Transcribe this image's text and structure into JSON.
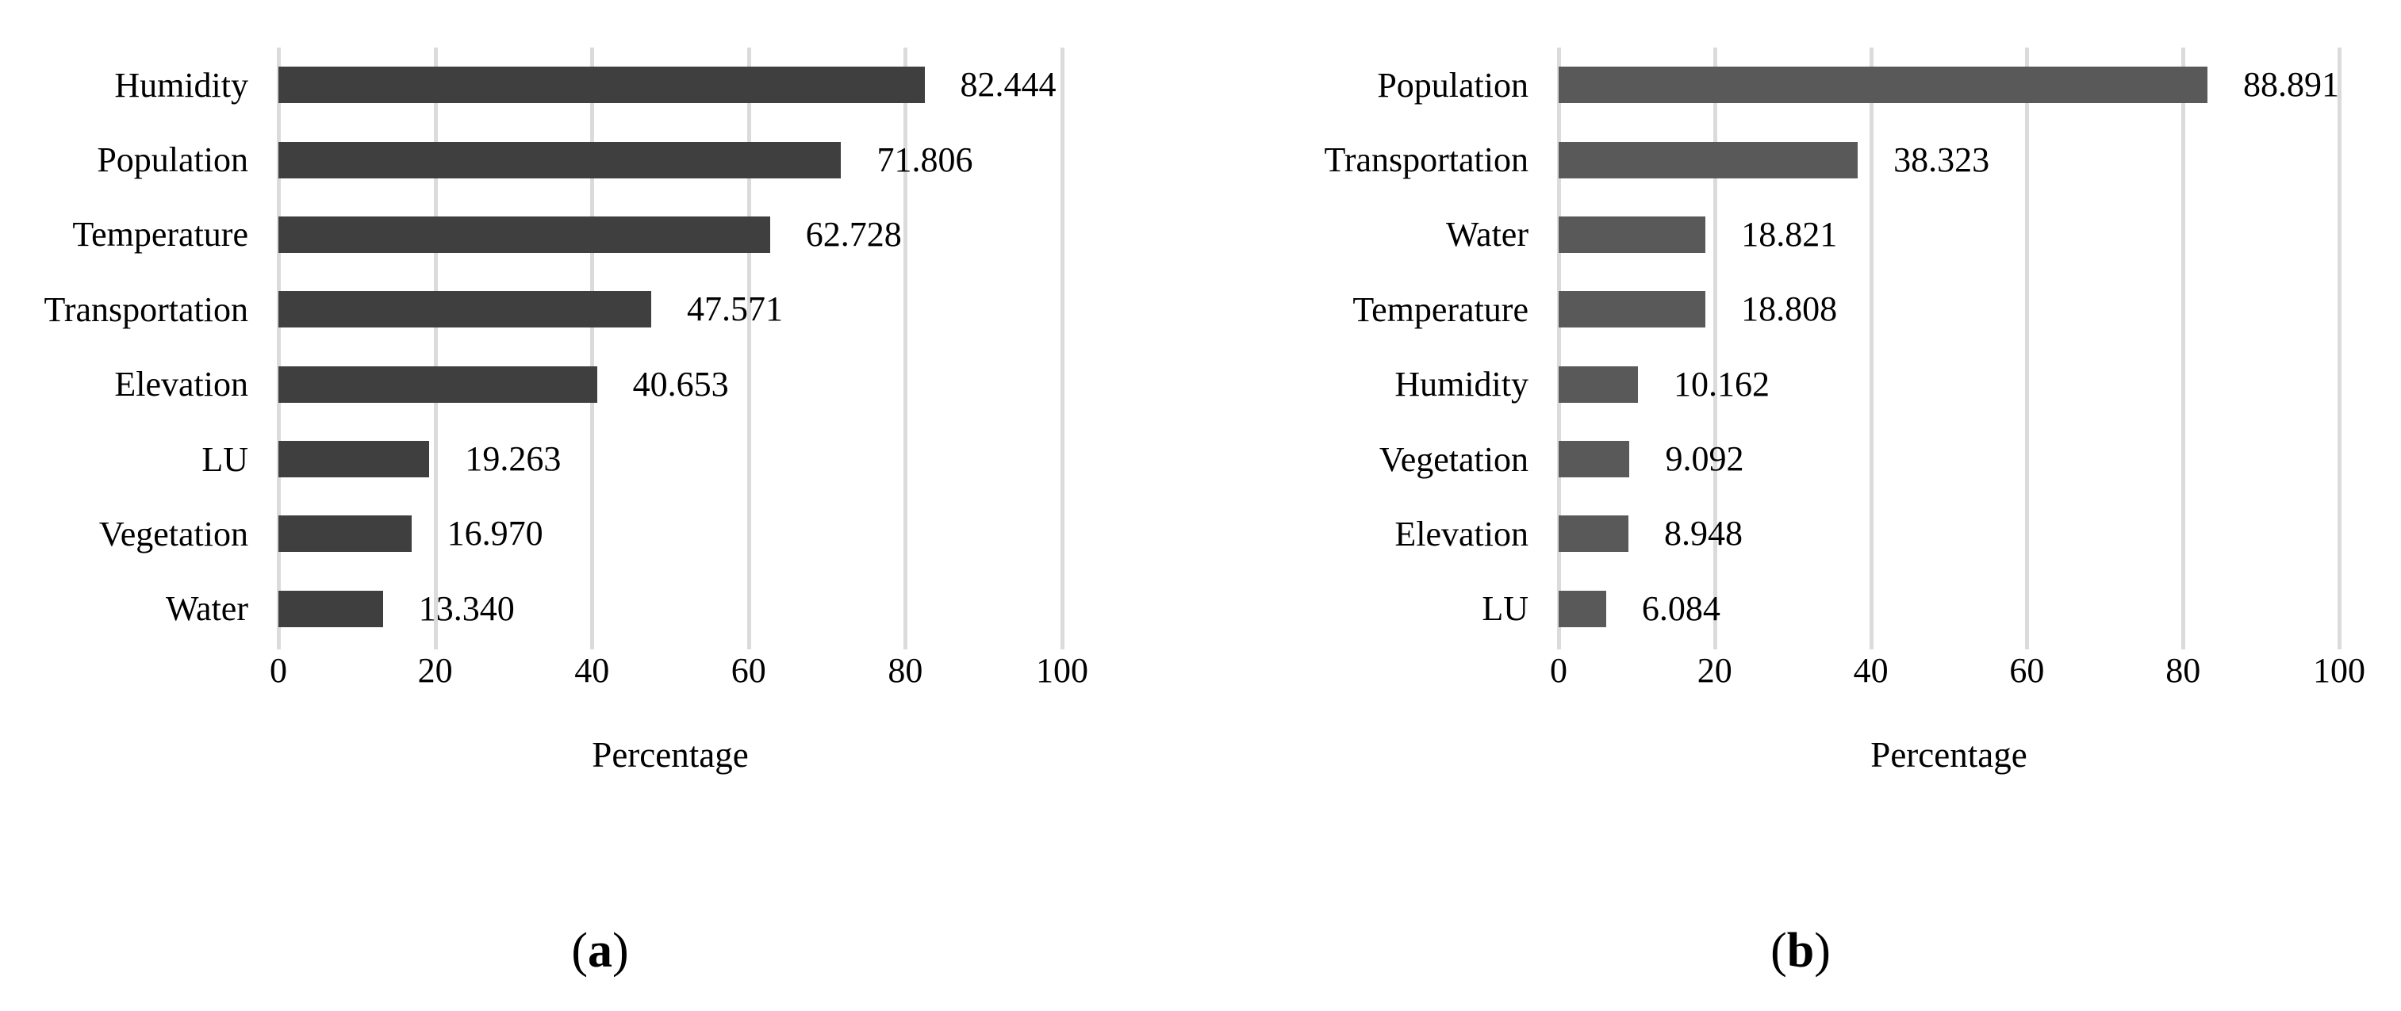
{
  "chart_data": [
    {
      "type": "bar",
      "orientation": "horizontal",
      "caption": {
        "open": "(",
        "letter": "a",
        "close": ")"
      },
      "xlabel": "Percentage",
      "bar_color": "#3F3F3F",
      "grid_color": "#DBDBDB",
      "grid": true,
      "legend": "none",
      "xlim": [
        0,
        100
      ],
      "ticks": [
        0,
        20,
        40,
        60,
        80,
        100
      ],
      "categories": [
        "Humidity",
        "Population",
        "Temperature",
        "Transportation",
        "Elevation",
        "LU",
        "Vegetation",
        "Water"
      ],
      "values": [
        82.444,
        71.806,
        62.728,
        47.571,
        40.653,
        19.263,
        16.97,
        13.34
      ],
      "value_labels": [
        "82.444",
        "71.806",
        "62.728",
        "47.571",
        "40.653",
        "19.263",
        "16.970",
        "13.340"
      ]
    },
    {
      "type": "bar",
      "orientation": "horizontal",
      "caption": {
        "open": "(",
        "letter": "b",
        "close": ")"
      },
      "xlabel": "Percentage",
      "bar_color": "#595959",
      "grid_color": "#DBDBDB",
      "grid": true,
      "legend": "none",
      "xlim": [
        0,
        100
      ],
      "ticks": [
        0,
        20,
        40,
        60,
        80,
        100
      ],
      "categories": [
        "Population",
        "Transportation",
        "Water",
        "Temperature",
        "Humidity",
        "Vegetation",
        "Elevation",
        "LU"
      ],
      "values": [
        88.891,
        38.323,
        18.821,
        18.808,
        10.162,
        9.092,
        8.948,
        6.084
      ],
      "value_labels": [
        "88.891",
        "38.323",
        "18.821",
        "18.808",
        "10.162",
        "9.092",
        "8.948",
        "6.084"
      ]
    }
  ]
}
